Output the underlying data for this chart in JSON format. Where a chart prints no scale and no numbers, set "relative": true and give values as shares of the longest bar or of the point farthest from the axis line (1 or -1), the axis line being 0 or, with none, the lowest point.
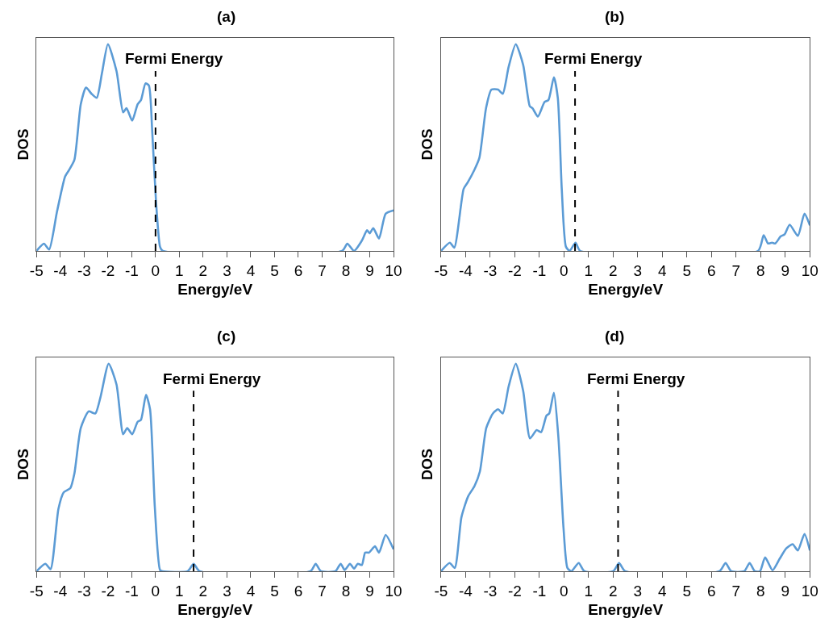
{
  "chart_data": [
    {
      "type": "line",
      "title": "(a)",
      "xlabel": "Energy/eV",
      "ylabel": "DOS",
      "relative": true,
      "xlim": [
        -5,
        10
      ],
      "xticks": [
        -5,
        -4,
        -3,
        -2,
        -1,
        0,
        1,
        2,
        3,
        4,
        5,
        6,
        7,
        8,
        9,
        10
      ],
      "x": [
        -5,
        -4.69,
        -4.47,
        -4.14,
        -3.8,
        -3.64,
        -3.41,
        -3.14,
        -2.92,
        -2.69,
        -2.47,
        -2.25,
        -2.0,
        -1.64,
        -1.36,
        -1.22,
        -0.98,
        -0.75,
        -0.61,
        -0.42,
        -0.28,
        -0.14,
        0.02,
        0.19,
        0.3,
        7.84,
        8.06,
        8.34,
        8.67,
        8.89,
        9.0,
        9.15,
        9.39,
        9.67,
        10
      ],
      "series": [
        {
          "color": "#5b9bd5",
          "values": [
            0,
            0.035,
            0.007,
            0.19,
            0.36,
            0.39,
            0.44,
            0.71,
            0.79,
            0.76,
            0.74,
            0.86,
            1.0,
            0.87,
            0.67,
            0.69,
            0.63,
            0.71,
            0.73,
            0.81,
            0.8,
            0.58,
            0.24,
            0.02,
            0,
            0,
            0.035,
            0,
            0.05,
            0.1,
            0.085,
            0.11,
            0.06,
            0.18,
            0.196
          ]
        }
      ],
      "ref_lines": [
        {
          "axis": "x",
          "value": 0,
          "label": "Fermi Energy",
          "line_style": "dashed",
          "color": "#000000"
        }
      ]
    },
    {
      "type": "line",
      "title": "(b)",
      "xlabel": "Energy/eV",
      "ylabel": "DOS",
      "relative": true,
      "xlim": [
        -5,
        10
      ],
      "xticks": [
        -5,
        -4,
        -3,
        -2,
        -1,
        0,
        1,
        2,
        3,
        4,
        5,
        6,
        7,
        8,
        9,
        10
      ],
      "x": [
        -5,
        -4.64,
        -4.46,
        -4.08,
        -3.92,
        -3.65,
        -3.44,
        -3.17,
        -2.95,
        -2.68,
        -2.49,
        -2.25,
        -1.96,
        -1.66,
        -1.39,
        -1.28,
        -1.06,
        -0.79,
        -0.63,
        -0.41,
        -0.25,
        -0.09,
        0.08,
        0.23,
        0.47,
        0.66,
        7.89,
        8.12,
        8.3,
        8.46,
        8.59,
        8.81,
        8.97,
        9.18,
        9.51,
        9.78,
        10
      ],
      "series": [
        {
          "color": "#5b9bd5",
          "values": [
            0,
            0.04,
            0.016,
            0.3,
            0.33,
            0.39,
            0.45,
            0.69,
            0.78,
            0.78,
            0.76,
            0.89,
            1.0,
            0.9,
            0.7,
            0.69,
            0.65,
            0.72,
            0.73,
            0.84,
            0.74,
            0.3,
            0.02,
            0,
            0.04,
            0,
            0,
            0.076,
            0.036,
            0.04,
            0.036,
            0.07,
            0.08,
            0.127,
            0.073,
            0.18,
            0.124
          ]
        }
      ],
      "ref_lines": [
        {
          "axis": "x",
          "value": 0.45,
          "label": "Fermi Energy",
          "line_style": "dashed",
          "color": "#000000"
        }
      ]
    },
    {
      "type": "line",
      "title": "(c)",
      "xlabel": "Energy/eV",
      "ylabel": "DOS",
      "relative": true,
      "xlim": [
        -5,
        10
      ],
      "xticks": [
        -5,
        -4,
        -3,
        -2,
        -1,
        0,
        1,
        2,
        3,
        4,
        5,
        6,
        7,
        8,
        9,
        10
      ],
      "x": [
        -5,
        -4.63,
        -4.41,
        -4.08,
        -3.86,
        -3.58,
        -3.41,
        -3.14,
        -2.81,
        -2.53,
        -2.31,
        -1.97,
        -1.64,
        -1.36,
        -1.19,
        -0.98,
        -0.75,
        -0.61,
        -0.4,
        -0.23,
        -0.03,
        0.19,
        0.3,
        1.35,
        1.6,
        1.85,
        6.51,
        6.73,
        6.95,
        7.56,
        7.78,
        7.95,
        8.17,
        8.34,
        8.5,
        8.67,
        8.81,
        8.97,
        9.22,
        9.39,
        9.67,
        10
      ],
      "series": [
        {
          "color": "#5b9bd5",
          "values": [
            0,
            0.036,
            0.01,
            0.3,
            0.38,
            0.4,
            0.47,
            0.69,
            0.77,
            0.76,
            0.84,
            1.0,
            0.9,
            0.66,
            0.69,
            0.66,
            0.72,
            0.73,
            0.85,
            0.78,
            0.31,
            0.006,
            0,
            0,
            0.036,
            0,
            0,
            0.036,
            0,
            0,
            0.036,
            0.006,
            0.036,
            0.013,
            0.036,
            0.03,
            0.09,
            0.09,
            0.12,
            0.09,
            0.175,
            0.106
          ]
        }
      ],
      "ref_lines": [
        {
          "axis": "x",
          "value": 1.6,
          "label": "Fermi Energy",
          "line_style": "dashed",
          "color": "#000000"
        }
      ]
    },
    {
      "type": "line",
      "title": "(d)",
      "xlabel": "Energy/eV",
      "ylabel": "DOS",
      "relative": true,
      "xlim": [
        -5,
        10
      ],
      "xticks": [
        -5,
        -4,
        -3,
        -2,
        -1,
        0,
        1,
        2,
        3,
        4,
        5,
        6,
        7,
        8,
        9,
        10
      ],
      "x": [
        -5,
        -4.65,
        -4.44,
        -4.17,
        -3.9,
        -3.64,
        -3.42,
        -3.16,
        -2.89,
        -2.68,
        -2.49,
        -2.25,
        -1.96,
        -1.66,
        -1.38,
        -1.11,
        -0.93,
        -0.71,
        -0.6,
        -0.41,
        -0.23,
        -0.02,
        0.14,
        0.3,
        0.6,
        0.83,
        2.0,
        2.24,
        2.49,
        6.32,
        6.57,
        6.8,
        7.33,
        7.55,
        7.76,
        7.97,
        8.18,
        8.48,
        8.77,
        9.04,
        9.3,
        9.51,
        9.78,
        10
      ],
      "series": [
        {
          "color": "#5b9bd5",
          "values": [
            0,
            0.04,
            0.016,
            0.26,
            0.36,
            0.41,
            0.48,
            0.69,
            0.76,
            0.78,
            0.76,
            0.89,
            1.0,
            0.87,
            0.64,
            0.68,
            0.67,
            0.75,
            0.76,
            0.86,
            0.65,
            0.21,
            0.016,
            0,
            0.04,
            0,
            0,
            0.04,
            0,
            0,
            0.04,
            0,
            0,
            0.04,
            0,
            0,
            0.067,
            0.005,
            0.06,
            0.11,
            0.13,
            0.1,
            0.18,
            0.1
          ]
        }
      ],
      "ref_lines": [
        {
          "axis": "x",
          "value": 2.2,
          "label": "Fermi Energy",
          "line_style": "dashed",
          "color": "#000000"
        }
      ]
    }
  ]
}
